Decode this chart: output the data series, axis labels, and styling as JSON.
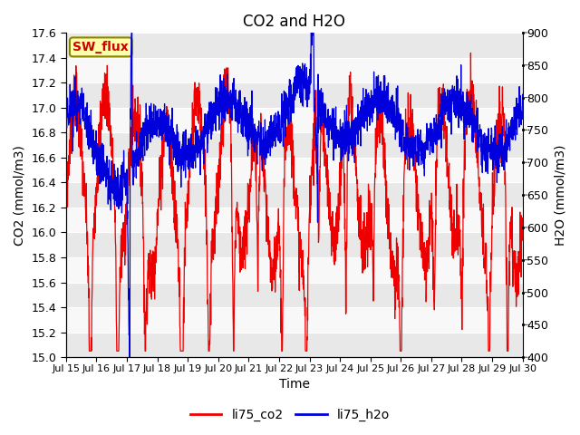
{
  "title": "CO2 and H2O",
  "xlabel": "Time",
  "ylabel_left": "CO2 (mmol/m3)",
  "ylabel_right": "H2O (mmol/m3)",
  "ylim_left": [
    15.0,
    17.6
  ],
  "ylim_right": [
    400,
    900
  ],
  "yticks_left": [
    15.0,
    15.2,
    15.4,
    15.6,
    15.8,
    16.0,
    16.2,
    16.4,
    16.6,
    16.8,
    17.0,
    17.2,
    17.4,
    17.6
  ],
  "yticks_right": [
    400,
    450,
    500,
    550,
    600,
    650,
    700,
    750,
    800,
    850,
    900
  ],
  "xtick_days": [
    15,
    16,
    17,
    18,
    19,
    20,
    21,
    22,
    23,
    24,
    25,
    26,
    27,
    28,
    29,
    30
  ],
  "sw_flux_label": "SW_flux",
  "sw_flux_label_color": "#cc0000",
  "sw_flux_bg_color": "#ffffaa",
  "sw_flux_border_color": "#888800",
  "legend_entries": [
    "li75_co2",
    "li75_h2o"
  ],
  "line_color_co2": "#ee0000",
  "line_color_h2o": "#0000dd",
  "background_color": "#ffffff",
  "band_color_odd": "#e8e8e8",
  "band_color_even": "#f8f8f8",
  "title_fontsize": 12,
  "axis_label_fontsize": 10,
  "tick_fontsize": 9
}
